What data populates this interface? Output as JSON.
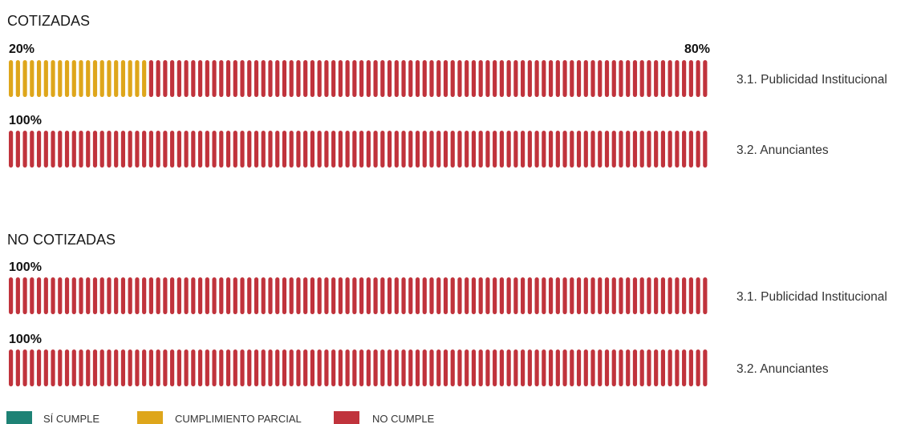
{
  "chart_data": {
    "type": "bar",
    "orientation": "horizontal",
    "stacked": true,
    "percent_scale": [
      0,
      100
    ],
    "groups": [
      {
        "title": "COTIZADAS",
        "rows": [
          {
            "category": "3.1. Publicidad Institucional",
            "segments": [
              {
                "series": "CUMPLIMIENTO PARCIAL",
                "value": 20,
                "label": "20%"
              },
              {
                "series": "NO CUMPLE",
                "value": 80,
                "label": "80%"
              }
            ]
          },
          {
            "category": "3.2. Anunciantes",
            "segments": [
              {
                "series": "NO CUMPLE",
                "value": 100,
                "label": "100%"
              }
            ]
          }
        ]
      },
      {
        "title": "NO COTIZADAS",
        "rows": [
          {
            "category": "3.1. Publicidad Institucional",
            "segments": [
              {
                "series": "NO CUMPLE",
                "value": 100,
                "label": "100%"
              }
            ]
          },
          {
            "category": "3.2. Anunciantes",
            "segments": [
              {
                "series": "NO CUMPLE",
                "value": 100,
                "label": "100%"
              }
            ]
          }
        ]
      }
    ],
    "legend": {
      "placement": "bottom-left",
      "items": [
        {
          "name": "SÍ CUMPLE",
          "color": "#1e8275"
        },
        {
          "name": "CUMPLIMIENTO PARCIAL",
          "color": "#dea61b"
        },
        {
          "name": "NO CUMPLE",
          "color": "#c0333c"
        }
      ]
    },
    "colors": {
      "SÍ CUMPLE": "#1e8275",
      "CUMPLIMIENTO PARCIAL": "#dea61b",
      "NO CUMPLE": "#c0333c"
    },
    "grid": false
  }
}
